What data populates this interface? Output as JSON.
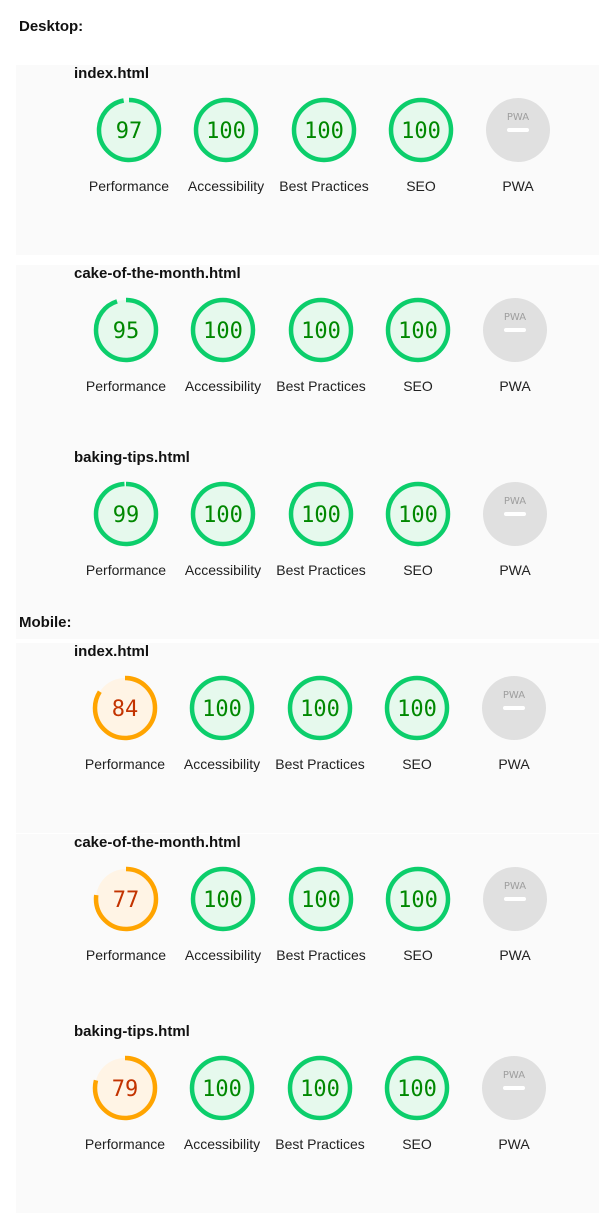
{
  "sections": [
    {
      "label": "Desktop:",
      "reports": [
        {
          "title": "index.html",
          "scores": [
            {
              "label": "Performance",
              "value": 97
            },
            {
              "label": "Accessibility",
              "value": 100
            },
            {
              "label": "Best Practices",
              "value": 100
            },
            {
              "label": "SEO",
              "value": 100
            },
            {
              "label": "PWA",
              "value": null,
              "badge": "PWA"
            }
          ]
        },
        {
          "title": "cake-of-the-month.html",
          "scores": [
            {
              "label": "Performance",
              "value": 95
            },
            {
              "label": "Accessibility",
              "value": 100
            },
            {
              "label": "Best Practices",
              "value": 100
            },
            {
              "label": "SEO",
              "value": 100
            },
            {
              "label": "PWA",
              "value": null,
              "badge": "PWA"
            }
          ]
        },
        {
          "title": "baking-tips.html",
          "scores": [
            {
              "label": "Performance",
              "value": 99
            },
            {
              "label": "Accessibility",
              "value": 100
            },
            {
              "label": "Best Practices",
              "value": 100
            },
            {
              "label": "SEO",
              "value": 100
            },
            {
              "label": "PWA",
              "value": null,
              "badge": "PWA"
            }
          ]
        }
      ]
    },
    {
      "label": "Mobile:",
      "reports": [
        {
          "title": "index.html",
          "scores": [
            {
              "label": "Performance",
              "value": 84
            },
            {
              "label": "Accessibility",
              "value": 100
            },
            {
              "label": "Best Practices",
              "value": 100
            },
            {
              "label": "SEO",
              "value": 100
            },
            {
              "label": "PWA",
              "value": null,
              "badge": "PWA"
            }
          ]
        },
        {
          "title": "cake-of-the-month.html",
          "scores": [
            {
              "label": "Performance",
              "value": 77
            },
            {
              "label": "Accessibility",
              "value": 100
            },
            {
              "label": "Best Practices",
              "value": 100
            },
            {
              "label": "SEO",
              "value": 100
            },
            {
              "label": "PWA",
              "value": null,
              "badge": "PWA"
            }
          ]
        },
        {
          "title": "baking-tips.html",
          "scores": [
            {
              "label": "Performance",
              "value": 79
            },
            {
              "label": "Accessibility",
              "value": 100
            },
            {
              "label": "Best Practices",
              "value": 100
            },
            {
              "label": "SEO",
              "value": 100
            },
            {
              "label": "PWA",
              "value": null,
              "badge": "PWA"
            }
          ]
        }
      ]
    }
  ],
  "colors": {
    "pass": "#0cce6b",
    "pass_fill": "#e6f9ed",
    "pass_text": "#008800",
    "average": "#ffa400",
    "average_fill": "#fff4e5",
    "average_text": "#c33300",
    "na": "#e0e0e0",
    "na_text": "#9e9e9e"
  }
}
